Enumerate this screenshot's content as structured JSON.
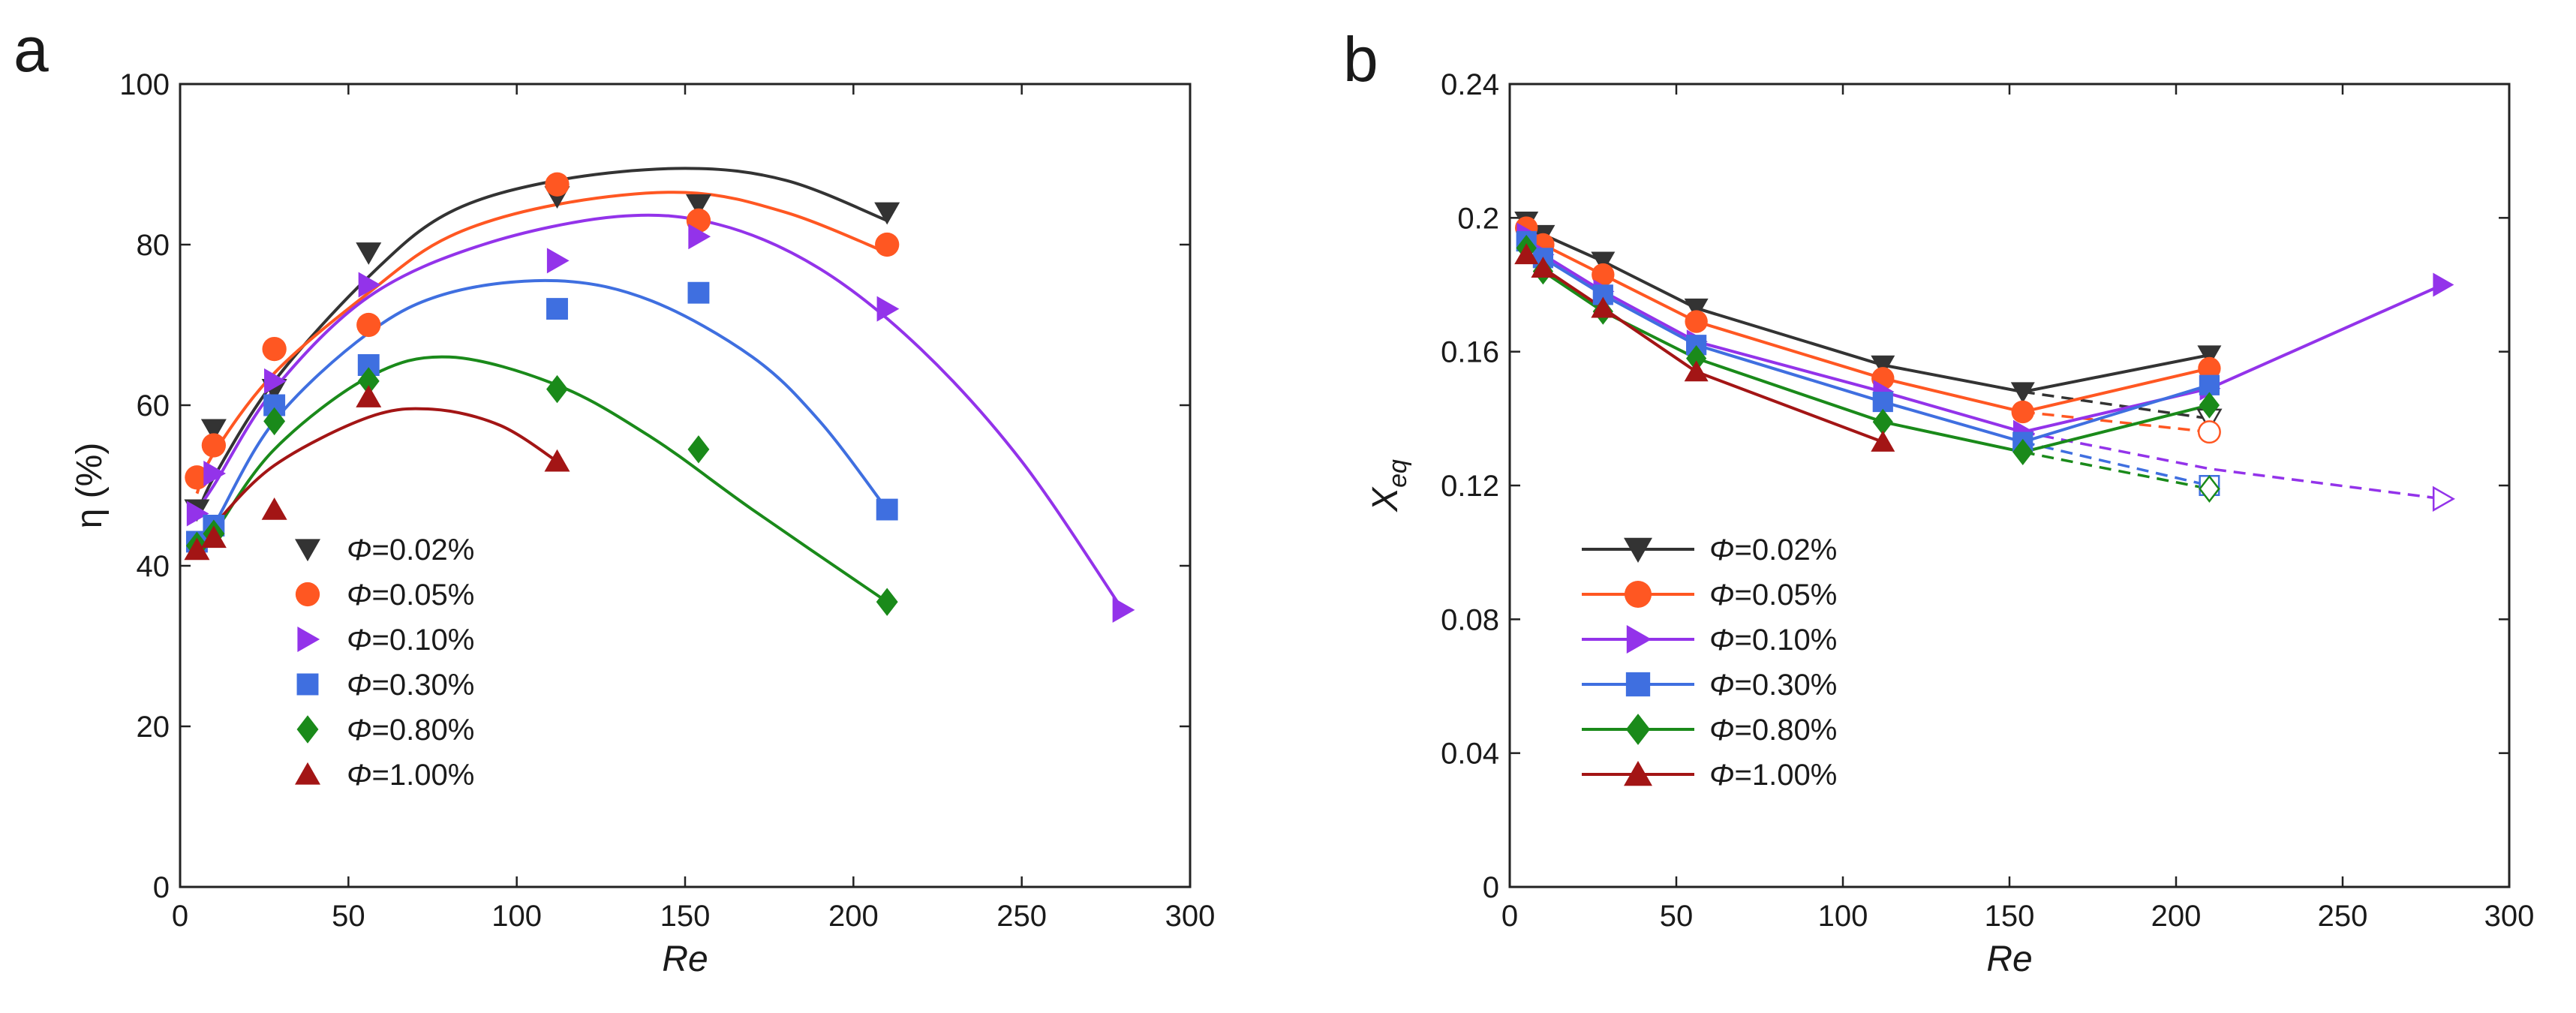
{
  "chart_data": [
    {
      "panel": "a",
      "type": "scatter",
      "xlabel": "Re",
      "ylabel": "η (%)",
      "xlim": [
        0,
        300
      ],
      "ylim": [
        0,
        100
      ],
      "xticks": [
        0,
        50,
        100,
        150,
        200,
        250,
        300
      ],
      "yticks": [
        0,
        20,
        40,
        60,
        80,
        100
      ],
      "legend_position": "lower-left",
      "series": [
        {
          "name": "Φ=0.02%",
          "prefix": "Φ",
          "suffix": "=0.02%",
          "color": "#333333",
          "marker": "triangle-down",
          "x": [
            5,
            10,
            28,
            56,
            112,
            154,
            210
          ],
          "y": [
            47,
            57,
            62,
            79,
            86,
            85,
            84
          ],
          "fit": [
            [
              5,
              46
            ],
            [
              10,
              51
            ],
            [
              28,
              63
            ],
            [
              56,
              76
            ],
            [
              80,
              84
            ],
            [
              112,
              88
            ],
            [
              150,
              89.5
            ],
            [
              180,
              88
            ],
            [
              210,
              83
            ]
          ]
        },
        {
          "name": "Φ=0.05%",
          "prefix": "Φ",
          "suffix": "=0.05%",
          "color": "#ff5722",
          "marker": "circle",
          "x": [
            5,
            10,
            28,
            56,
            112,
            154,
            210
          ],
          "y": [
            51,
            55,
            67,
            70,
            87.5,
            83,
            80
          ],
          "fit": [
            [
              5,
              49
            ],
            [
              10,
              54
            ],
            [
              28,
              64
            ],
            [
              56,
              74
            ],
            [
              80,
              81
            ],
            [
              112,
              85
            ],
            [
              150,
              86.5
            ],
            [
              180,
              84
            ],
            [
              210,
              79
            ]
          ]
        },
        {
          "name": "Φ=0.10%",
          "prefix": "Φ",
          "suffix": "=0.10%",
          "color": "#9333ea",
          "marker": "triangle-right",
          "x": [
            5,
            10,
            28,
            56,
            112,
            154,
            210,
            280
          ],
          "y": [
            46.5,
            51.5,
            63,
            75,
            78,
            81,
            72,
            34.5
          ],
          "fit": [
            [
              5,
              47
            ],
            [
              10,
              50
            ],
            [
              28,
              62
            ],
            [
              56,
              73.5
            ],
            [
              90,
              80
            ],
            [
              130,
              83.5
            ],
            [
              160,
              82.5
            ],
            [
              190,
              77
            ],
            [
              220,
              67
            ],
            [
              250,
              53
            ],
            [
              280,
              34.5
            ]
          ]
        },
        {
          "name": "Φ=0.30%",
          "prefix": "Φ",
          "suffix": "=0.30%",
          "color": "#3f6fe0",
          "marker": "square",
          "x": [
            5,
            10,
            28,
            56,
            112,
            154,
            210
          ],
          "y": [
            43,
            45,
            60,
            65,
            72,
            74,
            47
          ],
          "fit": [
            [
              5,
              42
            ],
            [
              10,
              45
            ],
            [
              28,
              58
            ],
            [
              56,
              69
            ],
            [
              80,
              74
            ],
            [
              112,
              75.5
            ],
            [
              140,
              73
            ],
            [
              170,
              66
            ],
            [
              190,
              58
            ],
            [
              210,
              47
            ]
          ]
        },
        {
          "name": "Φ=0.80%",
          "prefix": "Φ",
          "suffix": "=0.80%",
          "color": "#1a8a1a",
          "marker": "diamond",
          "x": [
            5,
            10,
            28,
            56,
            112,
            154,
            210
          ],
          "y": [
            42.5,
            44,
            58,
            63,
            62,
            54.5,
            35.5
          ],
          "fit": [
            [
              5,
              41
            ],
            [
              10,
              44
            ],
            [
              28,
              54.5
            ],
            [
              56,
              63.5
            ],
            [
              80,
              66
            ],
            [
              112,
              62.5
            ],
            [
              140,
              56
            ],
            [
              170,
              47
            ],
            [
              210,
              35.5
            ]
          ]
        },
        {
          "name": "Φ=1.00%",
          "prefix": "Φ",
          "suffix": "=1.00%",
          "color": "#a31515",
          "marker": "triangle-up",
          "x": [
            5,
            10,
            28,
            56,
            112
          ],
          "y": [
            42,
            43.5,
            47,
            61,
            53
          ],
          "fit": [
            [
              5,
              42
            ],
            [
              10,
              45
            ],
            [
              28,
              52.5
            ],
            [
              56,
              58.5
            ],
            [
              75,
              59.5
            ],
            [
              95,
              57.5
            ],
            [
              112,
              53
            ]
          ]
        }
      ]
    },
    {
      "panel": "b",
      "type": "line",
      "xlabel": "Re",
      "ylabel": "X",
      "ylabel_sub": "eq",
      "xlim": [
        0,
        300
      ],
      "ylim": [
        0,
        0.24
      ],
      "xticks": [
        0,
        50,
        100,
        150,
        200,
        250,
        300
      ],
      "yticks": [
        0,
        0.04,
        0.08,
        0.12,
        0.16,
        0.2,
        0.24
      ],
      "ytick_labels": [
        "0",
        "0.04",
        "0.08",
        "0.12",
        "0.16",
        "0.2",
        "0.24"
      ],
      "legend_position": "lower-left",
      "series": [
        {
          "name": "Φ=0.02%",
          "prefix": "Φ",
          "suffix": "=0.02%",
          "color": "#333333",
          "marker": "triangle-down",
          "x": [
            5,
            10,
            28,
            56,
            112,
            154,
            210
          ],
          "y": [
            0.199,
            0.195,
            0.187,
            0.173,
            0.156,
            0.148,
            0.159
          ],
          "dashed": {
            "x": [
              154,
              210
            ],
            "y": [
              0.148,
              0.14
            ]
          }
        },
        {
          "name": "Φ=0.05%",
          "prefix": "Φ",
          "suffix": "=0.05%",
          "color": "#ff5722",
          "marker": "circle",
          "x": [
            5,
            10,
            28,
            56,
            112,
            154,
            210
          ],
          "y": [
            0.197,
            0.192,
            0.183,
            0.169,
            0.152,
            0.142,
            0.155
          ],
          "dashed": {
            "x": [
              154,
              210
            ],
            "y": [
              0.142,
              0.136
            ]
          }
        },
        {
          "name": "Φ=0.10%",
          "prefix": "Φ",
          "suffix": "=0.10%",
          "color": "#9333ea",
          "marker": "triangle-right",
          "x": [
            5,
            10,
            28,
            56,
            112,
            154,
            210,
            280
          ],
          "y": [
            0.195,
            0.189,
            0.178,
            0.163,
            0.148,
            0.136,
            0.149,
            0.18
          ],
          "dashed": {
            "x": [
              154,
              210,
              280
            ],
            "y": [
              0.136,
              0.125,
              0.116
            ]
          }
        },
        {
          "name": "Φ=0.30%",
          "prefix": "Φ",
          "suffix": "=0.30%",
          "color": "#3f6fe0",
          "marker": "square",
          "x": [
            5,
            10,
            28,
            56,
            112,
            154,
            210
          ],
          "y": [
            0.193,
            0.188,
            0.177,
            0.162,
            0.145,
            0.133,
            0.15
          ],
          "dashed": {
            "x": [
              154,
              210
            ],
            "y": [
              0.133,
              0.12
            ]
          }
        },
        {
          "name": "Φ=0.80%",
          "prefix": "Φ",
          "suffix": "=0.80%",
          "color": "#1a8a1a",
          "marker": "diamond",
          "x": [
            5,
            10,
            28,
            56,
            112,
            154,
            210
          ],
          "y": [
            0.191,
            0.184,
            0.172,
            0.158,
            0.139,
            0.13,
            0.144
          ],
          "dashed": {
            "x": [
              154,
              210
            ],
            "y": [
              0.13,
              0.119
            ]
          }
        },
        {
          "name": "Φ=1.00%",
          "prefix": "Φ",
          "suffix": "=1.00%",
          "color": "#a31515",
          "marker": "triangle-up",
          "x": [
            5,
            10,
            28,
            56,
            112
          ],
          "y": [
            0.189,
            0.185,
            0.173,
            0.154,
            0.133
          ]
        }
      ]
    }
  ],
  "panels": {
    "a_label": "a",
    "b_label": "b"
  }
}
